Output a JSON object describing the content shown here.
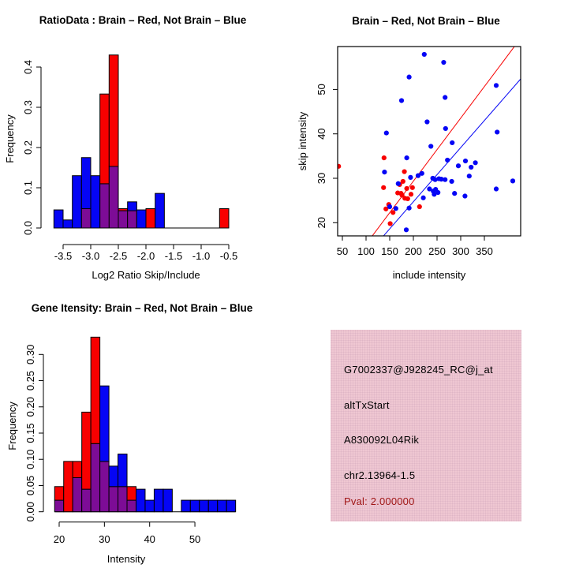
{
  "page": {
    "background": "#FFFFFF"
  },
  "colors": {
    "red": "#F80000",
    "blue": "#0505F5",
    "overlap_purple": "#7D0C96",
    "axis": "#000000",
    "info_bg": "#EFC7D2",
    "pval": "#A01616"
  },
  "chart_data": [
    {
      "id": "ratio_histogram",
      "type": "bar",
      "title": "RatioData : Brain – Red, Not Brain – Blue",
      "xlabel": "Log2 Ratio Skip/Include",
      "ylabel": "Frequency",
      "legend": "Brain = red, Not Brain = blue, overlap shown purple",
      "xlim": [
        -3.75,
        -0.35
      ],
      "ylim": [
        0,
        0.44
      ],
      "grid": false,
      "bin_width": 0.1667,
      "x_ticks": [
        {
          "v": -3.5,
          "label": "-3.5"
        },
        {
          "v": -3.0,
          "label": "-3.0"
        },
        {
          "v": -2.5,
          "label": "-2.5"
        },
        {
          "v": -2.0,
          "label": "-2.0"
        },
        {
          "v": -1.5,
          "label": "-1.5"
        },
        {
          "v": -1.0,
          "label": "-1.0"
        },
        {
          "v": -0.5,
          "label": "-0.5"
        }
      ],
      "y_ticks": [
        {
          "v": 0,
          "label": "0.0"
        },
        {
          "v": 0.1,
          "label": "0.1"
        },
        {
          "v": 0.2,
          "label": "0.2"
        },
        {
          "v": 0.3,
          "label": "0.3"
        },
        {
          "v": 0.4,
          "label": "0.4"
        }
      ],
      "bars_format": "x = left bin edge; blue/red = frequency of each series",
      "bars": [
        {
          "x": -3.667,
          "blue": 0.045,
          "red": 0
        },
        {
          "x": -3.5,
          "blue": 0.02,
          "red": 0
        },
        {
          "x": -3.333,
          "blue": 0.13,
          "red": 0
        },
        {
          "x": -3.167,
          "blue": 0.175,
          "red": 0.048
        },
        {
          "x": -3.0,
          "blue": 0.13,
          "red": 0
        },
        {
          "x": -2.833,
          "blue": 0.11,
          "red": 0.333
        },
        {
          "x": -2.667,
          "blue": 0.153,
          "red": 0.43
        },
        {
          "x": -2.5,
          "blue": 0.043,
          "red": 0.048
        },
        {
          "x": -2.333,
          "blue": 0.065,
          "red": 0.043
        },
        {
          "x": -2.167,
          "blue": 0.045,
          "red": 0
        },
        {
          "x": -2.0,
          "blue": 0,
          "red": 0.048
        },
        {
          "x": -1.833,
          "blue": 0.086,
          "red": 0
        },
        {
          "x": -0.667,
          "blue": 0,
          "red": 0.048
        }
      ]
    },
    {
      "id": "intensity_scatter",
      "type": "scatter",
      "title": "Brain – Red, Not Brain – Blue",
      "xlabel": "include intensity",
      "ylabel": "skip intensity",
      "xlim": [
        40,
        427
      ],
      "ylim": [
        17,
        59.7
      ],
      "grid": false,
      "x_ticks": [
        {
          "v": 50,
          "label": "50"
        },
        {
          "v": 100,
          "label": "100"
        },
        {
          "v": 150,
          "label": "150"
        },
        {
          "v": 200,
          "label": "200"
        },
        {
          "v": 250,
          "label": "250"
        },
        {
          "v": 300,
          "label": "300"
        },
        {
          "v": 350,
          "label": "350"
        }
      ],
      "y_ticks": [
        {
          "v": 20,
          "label": "20"
        },
        {
          "v": 30,
          "label": "30"
        },
        {
          "v": 40,
          "label": "40"
        },
        {
          "v": 50,
          "label": "50"
        }
      ],
      "points_format": "[include intensity, skip intensity]",
      "series": [
        {
          "name": "Brain",
          "color_key": "red",
          "points": [
            [
              42,
              32.7
            ],
            [
              138,
              34.6
            ],
            [
              137,
              27.9
            ],
            [
              148,
              24.1
            ],
            [
              142,
              23.1
            ],
            [
              157,
              22.3
            ],
            [
              151,
              19.8
            ],
            [
              181,
              31.5
            ],
            [
              167,
              26.7
            ],
            [
              174,
              26.6
            ],
            [
              176,
              26.2
            ],
            [
              182,
              25.5
            ],
            [
              186,
              27.7
            ],
            [
              195,
              26.4
            ],
            [
              198,
              27.9
            ],
            [
              188,
              25.4
            ],
            [
              178,
              29.3
            ],
            [
              171,
              28.6
            ],
            [
              213,
              23.6
            ]
          ]
        },
        {
          "name": "Not Brain",
          "color_key": "blue",
          "points": [
            [
              223,
              57.9
            ],
            [
              264,
              56.1
            ],
            [
              191,
              52.8
            ],
            [
              267,
              48.2
            ],
            [
              175,
              47.5
            ],
            [
              375,
              50.9
            ],
            [
              229,
              42.7
            ],
            [
              268,
              41.2
            ],
            [
              143,
              40.2
            ],
            [
              377,
              40.4
            ],
            [
              282,
              38
            ],
            [
              237,
              37.2
            ],
            [
              186,
              34.6
            ],
            [
              272,
              34.1
            ],
            [
              295,
              32.8
            ],
            [
              310,
              33.9
            ],
            [
              322,
              32.5
            ],
            [
              331,
              33.5
            ],
            [
              318,
              30.5
            ],
            [
              139,
              31.4
            ],
            [
              168,
              28.8
            ],
            [
              194,
              30.2
            ],
            [
              210,
              30.6
            ],
            [
              218,
              31.1
            ],
            [
              241,
              30
            ],
            [
              246,
              29.7
            ],
            [
              254,
              29.9
            ],
            [
              259,
              29.8
            ],
            [
              267,
              29.7
            ],
            [
              281,
              29.3
            ],
            [
              234,
              27.6
            ],
            [
              242,
              27.1
            ],
            [
              247,
              27.5
            ],
            [
              252,
              26.8
            ],
            [
              244,
              26.4
            ],
            [
              287,
              26.6
            ],
            [
              309,
              26
            ],
            [
              375,
              27.6
            ],
            [
              410,
              29.4
            ],
            [
              221,
              25.6
            ],
            [
              191,
              23.3
            ],
            [
              150,
              23.6
            ],
            [
              163,
              23.2
            ],
            [
              185,
              18.4
            ]
          ]
        }
      ],
      "fit_lines": [
        {
          "name": "brain-fit",
          "color_key": "red",
          "x1": 113,
          "y1": 17,
          "x2": 413,
          "y2": 59.6
        },
        {
          "name": "not-brain-fit",
          "color_key": "blue",
          "x1": 136.7,
          "y1": 17,
          "x2": 427,
          "y2": 52.4
        }
      ]
    },
    {
      "id": "gene_intensity_histogram",
      "type": "bar",
      "title": "Gene Itensity: Brain – Red, Not Brain – Blue",
      "xlabel": "Intensity",
      "ylabel": "Frequency",
      "legend": "Brain = red, Not Brain = blue, overlap shown purple",
      "xlim": [
        18,
        59.5
      ],
      "ylim": [
        0,
        0.34
      ],
      "grid": false,
      "bin_width": 2,
      "x_ticks": [
        {
          "v": 20,
          "label": "20"
        },
        {
          "v": 30,
          "label": "30"
        },
        {
          "v": 40,
          "label": "40"
        },
        {
          "v": 50,
          "label": "50"
        }
      ],
      "y_ticks": [
        {
          "v": 0,
          "label": "0.00"
        },
        {
          "v": 0.05,
          "label": "0.05"
        },
        {
          "v": 0.1,
          "label": "0.10"
        },
        {
          "v": 0.15,
          "label": "0.15"
        },
        {
          "v": 0.2,
          "label": "0.20"
        },
        {
          "v": 0.25,
          "label": "0.25"
        },
        {
          "v": 0.3,
          "label": "0.30"
        }
      ],
      "bars_format": "x = left bin edge; blue/red = frequency of each series",
      "bars": [
        {
          "x": 19,
          "blue": 0.022,
          "red": 0.048
        },
        {
          "x": 21,
          "blue": 0,
          "red": 0.096
        },
        {
          "x": 23,
          "blue": 0.065,
          "red": 0.096
        },
        {
          "x": 25,
          "blue": 0.043,
          "red": 0.19
        },
        {
          "x": 27,
          "blue": 0.13,
          "red": 0.333
        },
        {
          "x": 29,
          "blue": 0.24,
          "red": 0.096
        },
        {
          "x": 31,
          "blue": 0.087,
          "red": 0.048
        },
        {
          "x": 33,
          "blue": 0.11,
          "red": 0.048
        },
        {
          "x": 35,
          "blue": 0.022,
          "red": 0.048
        },
        {
          "x": 37,
          "blue": 0.043,
          "red": 0
        },
        {
          "x": 39,
          "blue": 0.022,
          "red": 0
        },
        {
          "x": 41,
          "blue": 0.043,
          "red": 0
        },
        {
          "x": 43,
          "blue": 0.043,
          "red": 0
        },
        {
          "x": 47,
          "blue": 0.022,
          "red": 0
        },
        {
          "x": 49,
          "blue": 0.022,
          "red": 0
        },
        {
          "x": 51,
          "blue": 0.022,
          "red": 0
        },
        {
          "x": 53,
          "blue": 0.022,
          "red": 0
        },
        {
          "x": 55,
          "blue": 0.022,
          "red": 0
        },
        {
          "x": 57,
          "blue": 0.022,
          "red": 0
        }
      ]
    }
  ],
  "info_panel": {
    "lines": [
      {
        "text": "G7002337@J928245_RC@j_at",
        "color": "#000000"
      },
      {
        "text": "altTxStart",
        "color": "#000000"
      },
      {
        "text": "A830092L04Rik",
        "color": "#000000"
      },
      {
        "text": "chr2.13964-1.5",
        "color": "#000000"
      },
      {
        "text": "Pval: 2.000000",
        "color": "#A01616"
      }
    ]
  }
}
